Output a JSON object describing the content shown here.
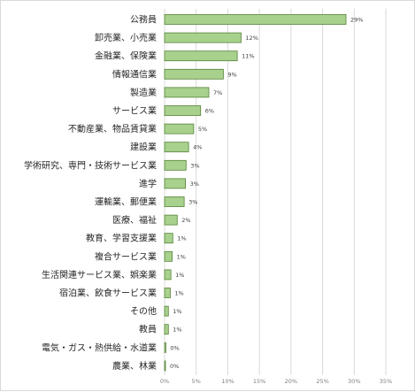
{
  "chart_data": {
    "type": "bar",
    "orientation": "horizontal",
    "categories": [
      "公務員",
      "卸売業、小売業",
      "金融業、保険業",
      "情報通信業",
      "製造業",
      "サービス業",
      "不動産業、物品賃貸業",
      "建設業",
      "学術研究、専門・技術サービス業",
      "進学",
      "運輸業、郵便業",
      "医療、福祉",
      "教育、学習支援業",
      "複合サービス業",
      "生活関連サービス業、娯楽業",
      "宿泊業、飲食サービス業",
      "その他",
      "教員",
      "電気・ガス・熱供給・水道業",
      "農業、林業"
    ],
    "values": [
      28.7,
      12.1,
      11.5,
      9.3,
      7.0,
      5.7,
      4.6,
      3.8,
      3.4,
      3.3,
      3.1,
      2.0,
      1.3,
      1.2,
      1.0,
      0.9,
      0.6,
      0.6,
      0.2,
      0.1
    ],
    "data_labels": [
      "29%",
      "12%",
      "11%",
      "9%",
      "7%",
      "6%",
      "5%",
      "4%",
      "3%",
      "3%",
      "3%",
      "2%",
      "1%",
      "1%",
      "1%",
      "1%",
      "1%",
      "1%",
      "0%",
      "0%"
    ],
    "xlim": [
      0,
      35
    ],
    "x_ticks": [
      "0%",
      "5%",
      "10%",
      "15%",
      "20%",
      "25%",
      "30%",
      "35%"
    ],
    "grid": true,
    "legend": false,
    "colors": {
      "bar_fill": "#a9d18e",
      "bar_stroke": "#548235",
      "grid": "#d9d9d9"
    }
  }
}
